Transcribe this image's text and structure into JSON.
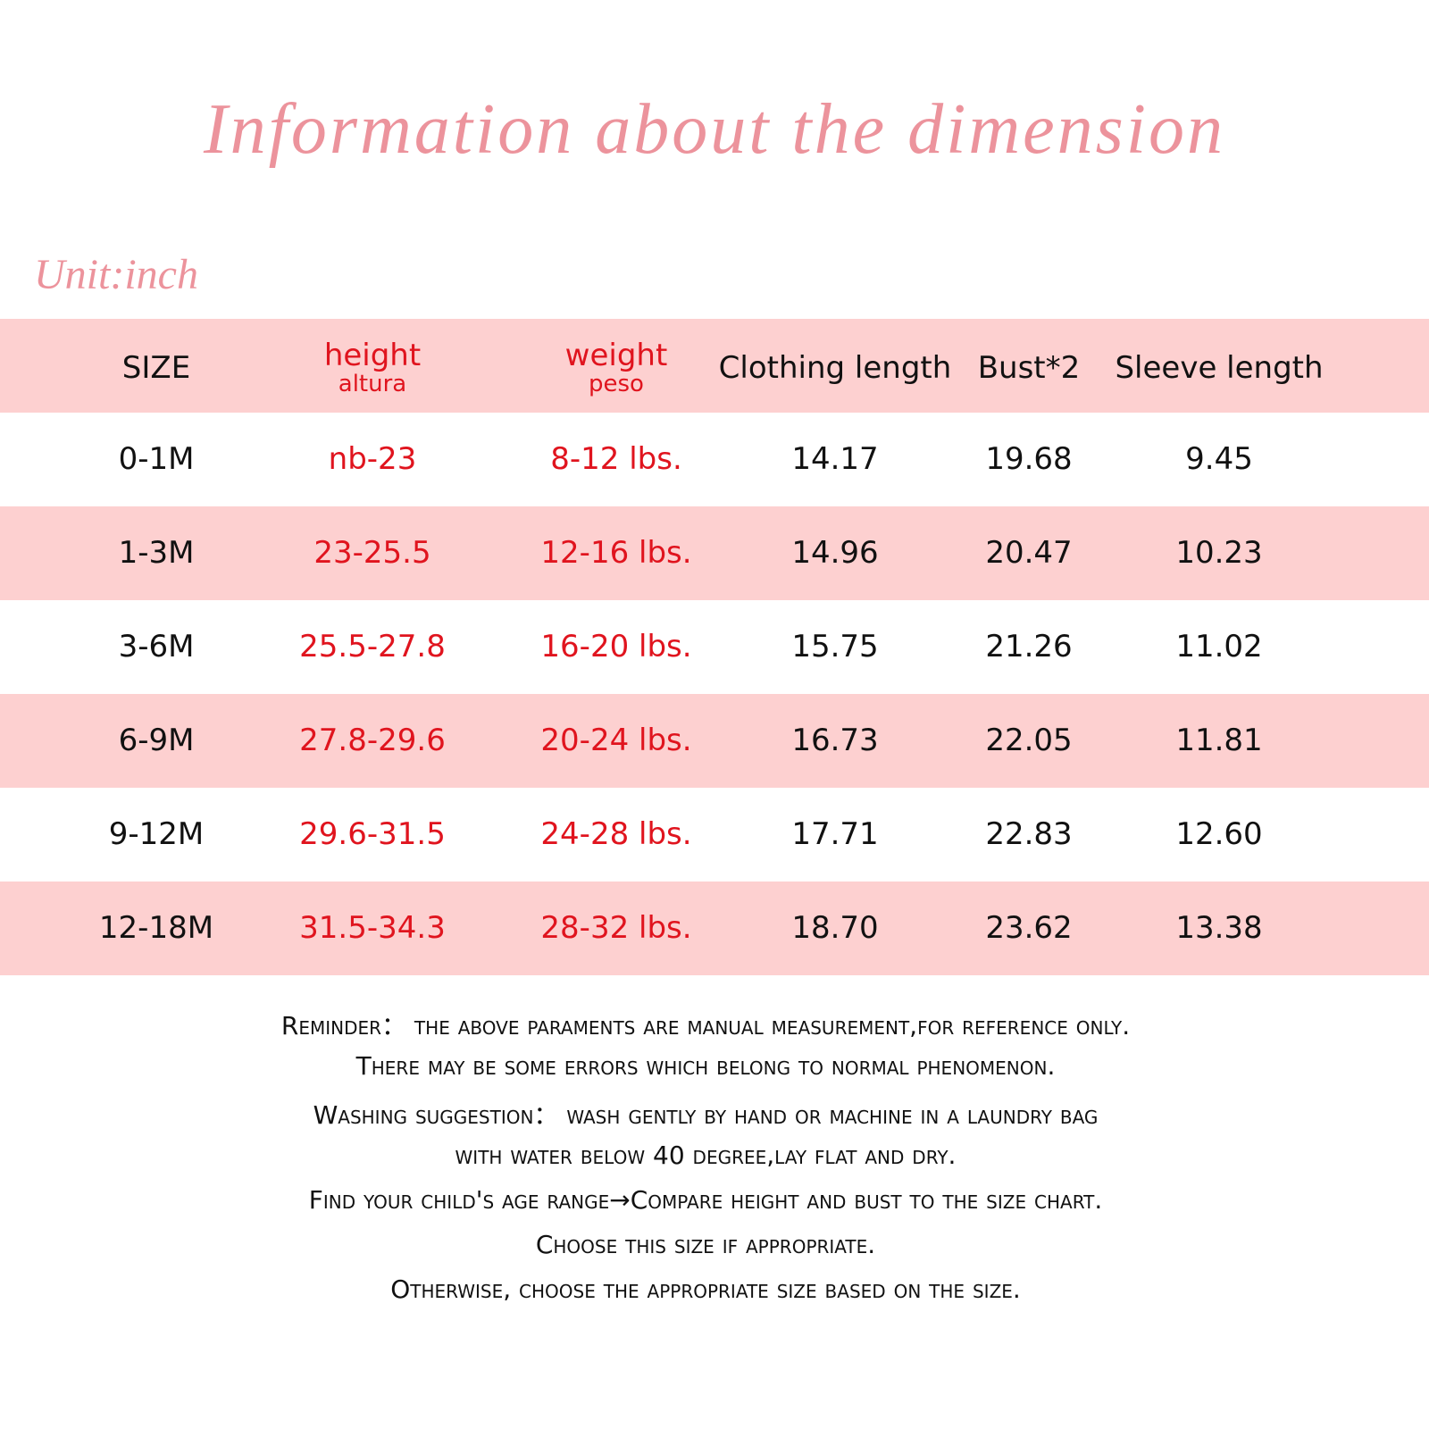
{
  "header": {
    "title": "Information about the dimension",
    "unit": "Unit:inch"
  },
  "table": {
    "columns": [
      {
        "label": "SIZE"
      },
      {
        "label": "height",
        "sublabel": "altura"
      },
      {
        "label": "weight",
        "sublabel": "peso"
      },
      {
        "label": "Clothing length"
      },
      {
        "label": "Bust*2"
      },
      {
        "label": "Sleeve length"
      }
    ],
    "rows": [
      [
        "0-1M",
        "nb-23",
        "8-12 lbs.",
        "14.17",
        "19.68",
        "9.45"
      ],
      [
        "1-3M",
        "23-25.5",
        "12-16 lbs.",
        "14.96",
        "20.47",
        "10.23"
      ],
      [
        "3-6M",
        "25.5-27.8",
        "16-20 lbs.",
        "15.75",
        "21.26",
        "11.02"
      ],
      [
        "6-9M",
        "27.8-29.6",
        "20-24 lbs.",
        "16.73",
        "22.05",
        "11.81"
      ],
      [
        "9-12M",
        "29.6-31.5",
        "24-28 lbs.",
        "17.71",
        "22.83",
        "12.60"
      ],
      [
        "12-18M",
        "31.5-34.3",
        "28-32 lbs.",
        "18.70",
        "23.62",
        "13.38"
      ]
    ]
  },
  "notes": [
    "Reminder： the above paraments are manual measurement,for reference only.",
    "There may be some errors which belong to normal phenomenon.",
    "Washing suggestion： wash gently by hand or machine in a laundry bag",
    "with water below 40 degree,lay flat and dry.",
    "Find your child's age range→Compare height and bust to the size chart.",
    "Choose this size if appropriate.",
    "Otherwise, choose the appropriate size based on the size."
  ]
}
